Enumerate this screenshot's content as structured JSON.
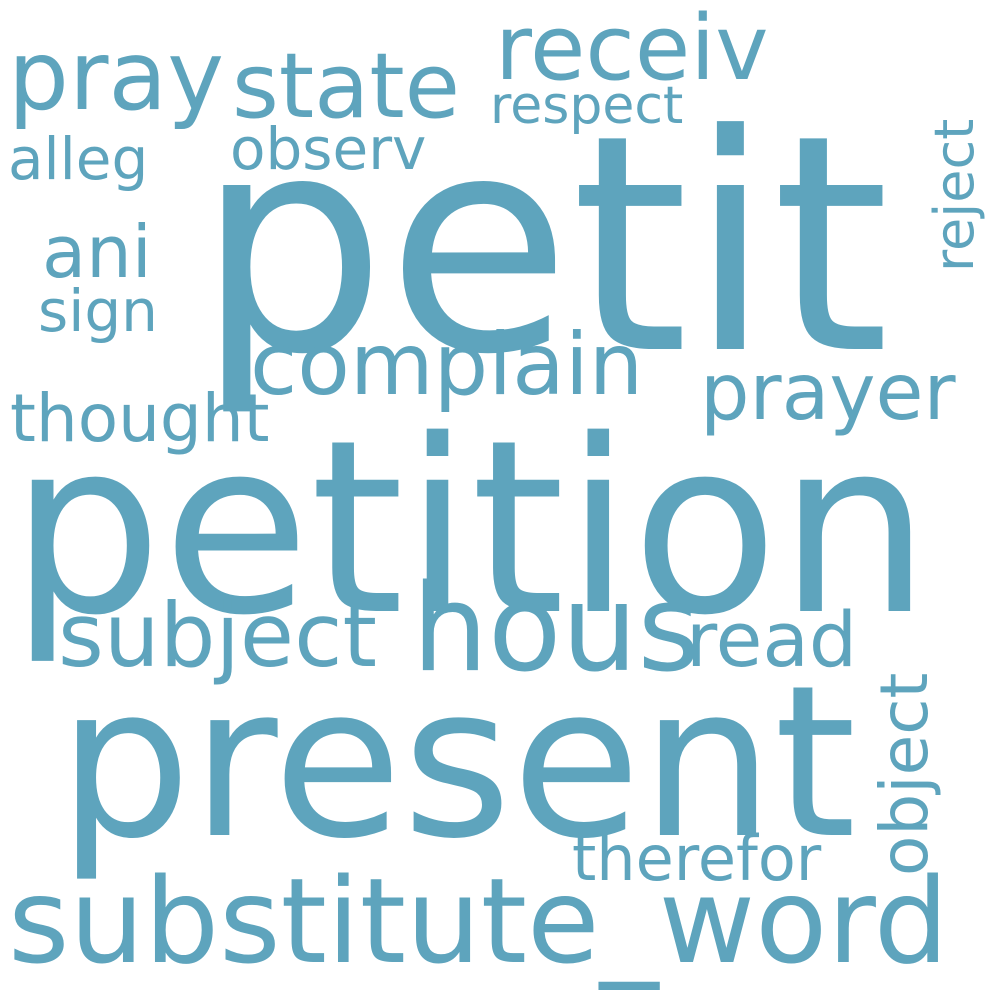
{
  "word_cloud": {
    "color": "#5ea4bd",
    "background": "#ffffff",
    "words": [
      {
        "id": "petit",
        "text": "petit",
        "vertical": false
      },
      {
        "id": "petition",
        "text": "petition",
        "vertical": false
      },
      {
        "id": "present",
        "text": "present",
        "vertical": false
      },
      {
        "id": "substitute-word",
        "text": "substitute_word",
        "vertical": false
      },
      {
        "id": "hous",
        "text": "hous",
        "vertical": false
      },
      {
        "id": "subject",
        "text": "subject",
        "vertical": false
      },
      {
        "id": "complain",
        "text": "complain",
        "vertical": false
      },
      {
        "id": "pray",
        "text": "pray",
        "vertical": false
      },
      {
        "id": "state",
        "text": "state",
        "vertical": false
      },
      {
        "id": "receiv",
        "text": "receiv",
        "vertical": false
      },
      {
        "id": "prayer",
        "text": "prayer",
        "vertical": false
      },
      {
        "id": "read",
        "text": "read",
        "vertical": false
      },
      {
        "id": "ani",
        "text": "ani",
        "vertical": false
      },
      {
        "id": "thought",
        "text": "thought",
        "vertical": false
      },
      {
        "id": "therefor",
        "text": "therefor",
        "vertical": false
      },
      {
        "id": "observ",
        "text": "observ",
        "vertical": false
      },
      {
        "id": "alleg",
        "text": "alleg",
        "vertical": false
      },
      {
        "id": "sign",
        "text": "sign",
        "vertical": false
      },
      {
        "id": "respect",
        "text": "respect",
        "vertical": false
      },
      {
        "id": "reject",
        "text": "reject",
        "vertical": true
      },
      {
        "id": "object",
        "text": "object",
        "vertical": true
      }
    ]
  }
}
